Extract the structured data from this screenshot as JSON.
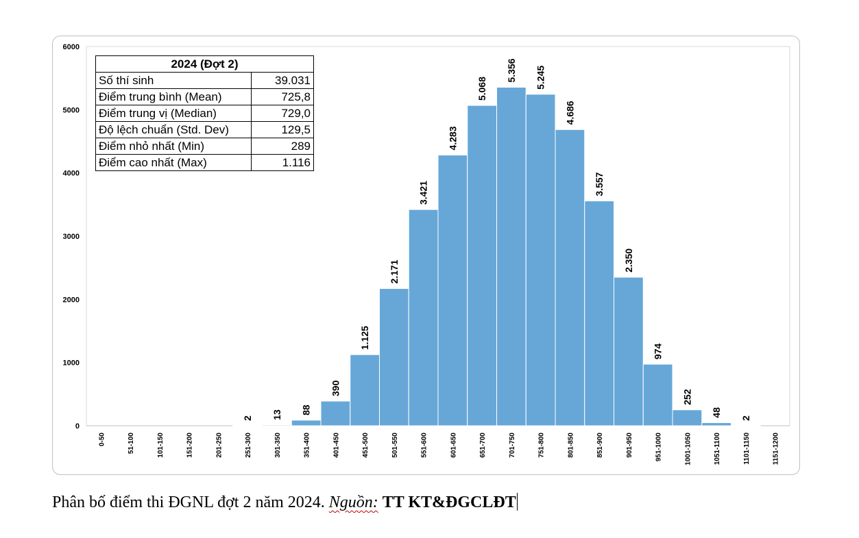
{
  "chart_data": {
    "type": "bar",
    "title": "",
    "xlabel": "",
    "ylabel": "",
    "ylim": [
      0,
      6000
    ],
    "yticks": [
      0,
      1000,
      2000,
      3000,
      4000,
      5000,
      6000
    ],
    "grid": false,
    "legend": "none",
    "bar_color": "#66a7d8",
    "categories": [
      "0-50",
      "51-100",
      "101-150",
      "151-200",
      "201-250",
      "251-300",
      "301-350",
      "351-400",
      "401-450",
      "451-500",
      "501-550",
      "551-600",
      "601-650",
      "651-700",
      "701-750",
      "751-800",
      "801-850",
      "851-900",
      "901-950",
      "951-1000",
      "1001-1050",
      "1051-1100",
      "1101-1150",
      "1151-1200"
    ],
    "values": [
      0,
      0,
      0,
      0,
      0,
      2,
      13,
      88,
      390,
      1125,
      2171,
      3421,
      4283,
      5068,
      5356,
      5245,
      4686,
      3557,
      2350,
      974,
      252,
      48,
      2,
      0
    ],
    "data_labels": [
      "",
      "",
      "",
      "",
      "",
      "2",
      "13",
      "88",
      "390",
      "1.125",
      "2.171",
      "3.421",
      "4.283",
      "5.068",
      "5.356",
      "5.245",
      "4.686",
      "3.557",
      "2.350",
      "974",
      "252",
      "48",
      "2",
      ""
    ]
  },
  "stats_table": {
    "header": "2024 (Đợt 2)",
    "rows": [
      {
        "label": "Số thí sinh",
        "value": "39.031"
      },
      {
        "label": "Điểm trung bình (Mean)",
        "value": "725,8"
      },
      {
        "label": "Điểm trung vị (Median)",
        "value": "729,0"
      },
      {
        "label": "Độ lệch chuẩn (Std. Dev)",
        "value": "129,5"
      },
      {
        "label": "Điểm nhỏ nhất (Min)",
        "value": "289"
      },
      {
        "label": "Điểm cao nhất (Max)",
        "value": "1.116"
      }
    ]
  },
  "caption": {
    "text": "Phân bố điểm thi ĐGNL đợt 2 năm 2024. ",
    "source_label": "Nguồn:",
    "source": "TT KT&ĐGCLĐT"
  }
}
